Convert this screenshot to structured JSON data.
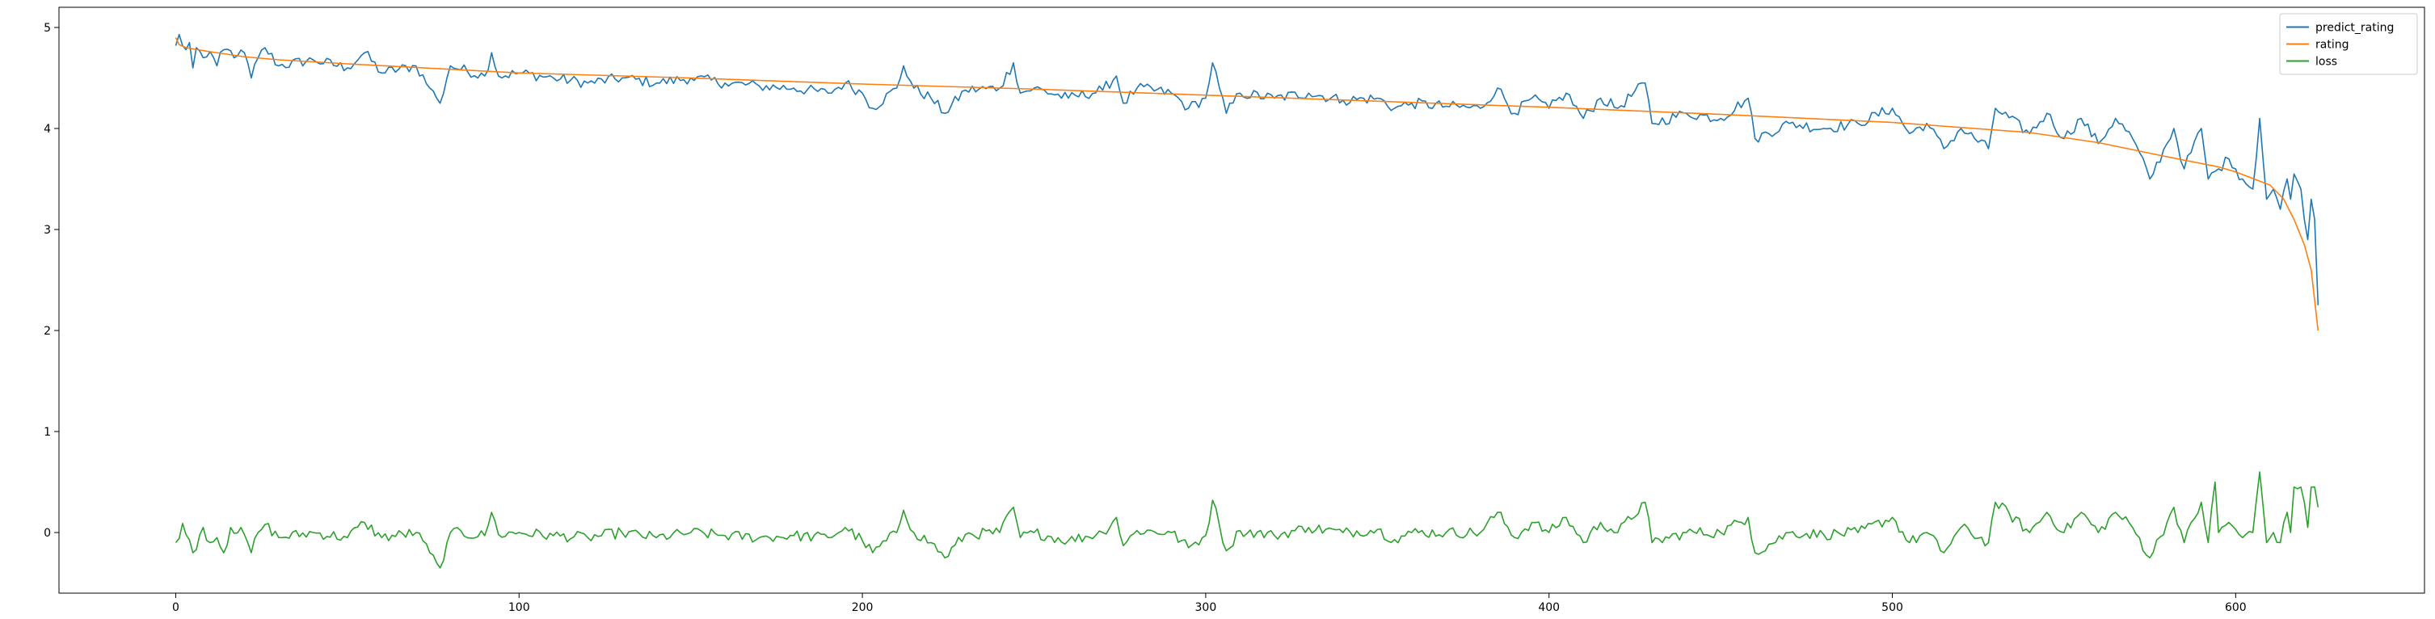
{
  "chart_data": {
    "type": "line",
    "title": "",
    "xlabel": "",
    "ylabel": "",
    "xlim": [
      -34,
      655
    ],
    "ylim": [
      -0.6,
      5.2
    ],
    "x_ticks": [
      0,
      100,
      200,
      300,
      400,
      500,
      600
    ],
    "y_ticks": [
      0,
      1,
      2,
      3,
      4,
      5
    ],
    "grid": false,
    "legend_position": "top-right",
    "n_points": 624,
    "series": [
      {
        "name": "predict_rating",
        "color": "#1f77b4",
        "anchors": [
          [
            0,
            4.82
          ],
          [
            1,
            4.93
          ],
          [
            2,
            4.82
          ],
          [
            3,
            4.78
          ],
          [
            4,
            4.85
          ],
          [
            5,
            4.6
          ],
          [
            6,
            4.8
          ],
          [
            8,
            4.7
          ],
          [
            10,
            4.76
          ],
          [
            12,
            4.62
          ],
          [
            14,
            4.78
          ],
          [
            18,
            4.72
          ],
          [
            20,
            4.75
          ],
          [
            22,
            4.5
          ],
          [
            24,
            4.7
          ],
          [
            26,
            4.8
          ],
          [
            30,
            4.62
          ],
          [
            40,
            4.68
          ],
          [
            50,
            4.6
          ],
          [
            55,
            4.75
          ],
          [
            60,
            4.55
          ],
          [
            70,
            4.62
          ],
          [
            74,
            4.4
          ],
          [
            76,
            4.3
          ],
          [
            77,
            4.25
          ],
          [
            79,
            4.5
          ],
          [
            80,
            4.62
          ],
          [
            90,
            4.52
          ],
          [
            92,
            4.75
          ],
          [
            94,
            4.52
          ],
          [
            100,
            4.55
          ],
          [
            110,
            4.5
          ],
          [
            120,
            4.45
          ],
          [
            130,
            4.5
          ],
          [
            140,
            4.45
          ],
          [
            150,
            4.5
          ],
          [
            160,
            4.45
          ],
          [
            170,
            4.42
          ],
          [
            180,
            4.4
          ],
          [
            190,
            4.35
          ],
          [
            195,
            4.45
          ],
          [
            200,
            4.35
          ],
          [
            203,
            4.2
          ],
          [
            210,
            4.4
          ],
          [
            212,
            4.62
          ],
          [
            215,
            4.4
          ],
          [
            220,
            4.3
          ],
          [
            224,
            4.15
          ],
          [
            230,
            4.38
          ],
          [
            240,
            4.4
          ],
          [
            244,
            4.65
          ],
          [
            246,
            4.35
          ],
          [
            250,
            4.4
          ],
          [
            260,
            4.3
          ],
          [
            270,
            4.38
          ],
          [
            274,
            4.52
          ],
          [
            276,
            4.25
          ],
          [
            280,
            4.4
          ],
          [
            290,
            4.35
          ],
          [
            295,
            4.2
          ],
          [
            300,
            4.3
          ],
          [
            302,
            4.65
          ],
          [
            304,
            4.4
          ],
          [
            306,
            4.15
          ],
          [
            310,
            4.35
          ],
          [
            320,
            4.3
          ],
          [
            330,
            4.35
          ],
          [
            340,
            4.28
          ],
          [
            350,
            4.3
          ],
          [
            355,
            4.2
          ],
          [
            360,
            4.25
          ],
          [
            370,
            4.22
          ],
          [
            380,
            4.2
          ],
          [
            385,
            4.4
          ],
          [
            390,
            4.15
          ],
          [
            395,
            4.3
          ],
          [
            400,
            4.2
          ],
          [
            405,
            4.35
          ],
          [
            410,
            4.1
          ],
          [
            415,
            4.3
          ],
          [
            420,
            4.2
          ],
          [
            428,
            4.45
          ],
          [
            430,
            4.05
          ],
          [
            440,
            4.15
          ],
          [
            450,
            4.1
          ],
          [
            458,
            4.3
          ],
          [
            460,
            3.9
          ],
          [
            470,
            4.05
          ],
          [
            480,
            4.0
          ],
          [
            490,
            4.05
          ],
          [
            500,
            4.2
          ],
          [
            505,
            3.95
          ],
          [
            510,
            4.05
          ],
          [
            515,
            3.8
          ],
          [
            520,
            4.0
          ],
          [
            528,
            3.8
          ],
          [
            530,
            4.2
          ],
          [
            540,
            3.95
          ],
          [
            545,
            4.15
          ],
          [
            550,
            3.9
          ],
          [
            555,
            4.1
          ],
          [
            560,
            3.85
          ],
          [
            565,
            4.1
          ],
          [
            570,
            3.9
          ],
          [
            575,
            3.5
          ],
          [
            580,
            3.85
          ],
          [
            582,
            4.0
          ],
          [
            585,
            3.6
          ],
          [
            590,
            4.0
          ],
          [
            592,
            3.5
          ],
          [
            595,
            3.6
          ],
          [
            598,
            3.7
          ],
          [
            600,
            3.6
          ],
          [
            602,
            3.5
          ],
          [
            605,
            3.4
          ],
          [
            607,
            4.1
          ],
          [
            609,
            3.3
          ],
          [
            611,
            3.4
          ],
          [
            613,
            3.2
          ],
          [
            615,
            3.5
          ],
          [
            616,
            3.3
          ],
          [
            617,
            3.55
          ],
          [
            619,
            3.4
          ],
          [
            620,
            3.1
          ],
          [
            621,
            2.9
          ],
          [
            622,
            3.3
          ],
          [
            623,
            3.1
          ],
          [
            624,
            2.25
          ]
        ],
        "noise": 0.055
      },
      {
        "name": "rating",
        "color": "#ff7f0e",
        "anchors": [
          [
            0,
            4.9
          ],
          [
            1,
            4.83
          ],
          [
            3,
            4.8
          ],
          [
            10,
            4.76
          ],
          [
            20,
            4.71
          ],
          [
            30,
            4.68
          ],
          [
            50,
            4.64
          ],
          [
            100,
            4.55
          ],
          [
            150,
            4.5
          ],
          [
            200,
            4.44
          ],
          [
            250,
            4.39
          ],
          [
            300,
            4.33
          ],
          [
            350,
            4.27
          ],
          [
            400,
            4.21
          ],
          [
            450,
            4.14
          ],
          [
            500,
            4.06
          ],
          [
            540,
            3.96
          ],
          [
            560,
            3.86
          ],
          [
            580,
            3.72
          ],
          [
            595,
            3.62
          ],
          [
            600,
            3.57
          ],
          [
            610,
            3.44
          ],
          [
            614,
            3.3
          ],
          [
            617,
            3.1
          ],
          [
            620,
            2.85
          ],
          [
            622,
            2.6
          ],
          [
            624,
            2.0
          ]
        ],
        "noise": 0
      },
      {
        "name": "loss",
        "color": "#2ca02c",
        "anchors": [
          [
            0,
            -0.1
          ],
          [
            2,
            0.09
          ],
          [
            3,
            -0.02
          ],
          [
            5,
            -0.2
          ],
          [
            8,
            0.05
          ],
          [
            10,
            -0.1
          ],
          [
            12,
            -0.05
          ],
          [
            14,
            -0.2
          ],
          [
            16,
            0.05
          ],
          [
            20,
            -0.02
          ],
          [
            22,
            -0.2
          ],
          [
            24,
            0.0
          ],
          [
            26,
            0.08
          ],
          [
            30,
            -0.05
          ],
          [
            40,
            0.0
          ],
          [
            50,
            -0.05
          ],
          [
            55,
            0.1
          ],
          [
            60,
            -0.05
          ],
          [
            70,
            0.0
          ],
          [
            74,
            -0.2
          ],
          [
            76,
            -0.3
          ],
          [
            77,
            -0.35
          ],
          [
            79,
            -0.1
          ],
          [
            80,
            0.0
          ],
          [
            90,
            -0.03
          ],
          [
            92,
            0.2
          ],
          [
            94,
            -0.02
          ],
          [
            100,
            0.0
          ],
          [
            110,
            -0.03
          ],
          [
            120,
            -0.05
          ],
          [
            130,
            0.0
          ],
          [
            140,
            -0.05
          ],
          [
            150,
            0.0
          ],
          [
            160,
            -0.03
          ],
          [
            170,
            -0.05
          ],
          [
            180,
            -0.03
          ],
          [
            190,
            -0.05
          ],
          [
            195,
            0.05
          ],
          [
            200,
            -0.08
          ],
          [
            203,
            -0.2
          ],
          [
            210,
            0.0
          ],
          [
            212,
            0.22
          ],
          [
            215,
            0.0
          ],
          [
            220,
            -0.1
          ],
          [
            224,
            -0.25
          ],
          [
            230,
            -0.02
          ],
          [
            240,
            0.0
          ],
          [
            244,
            0.25
          ],
          [
            246,
            -0.05
          ],
          [
            250,
            0.0
          ],
          [
            260,
            -0.08
          ],
          [
            270,
            0.0
          ],
          [
            274,
            0.15
          ],
          [
            276,
            -0.13
          ],
          [
            280,
            0.02
          ],
          [
            290,
            0.0
          ],
          [
            295,
            -0.15
          ],
          [
            300,
            -0.03
          ],
          [
            302,
            0.32
          ],
          [
            304,
            0.07
          ],
          [
            306,
            -0.18
          ],
          [
            310,
            0.02
          ],
          [
            320,
            -0.03
          ],
          [
            330,
            0.05
          ],
          [
            340,
            0.0
          ],
          [
            350,
            0.03
          ],
          [
            355,
            -0.07
          ],
          [
            360,
            0.0
          ],
          [
            370,
            0.0
          ],
          [
            380,
            0.0
          ],
          [
            385,
            0.2
          ],
          [
            390,
            -0.05
          ],
          [
            395,
            0.1
          ],
          [
            400,
            0.0
          ],
          [
            405,
            0.15
          ],
          [
            410,
            -0.1
          ],
          [
            415,
            0.1
          ],
          [
            420,
            0.0
          ],
          [
            428,
            0.3
          ],
          [
            430,
            -0.1
          ],
          [
            440,
            0.0
          ],
          [
            450,
            0.0
          ],
          [
            458,
            0.15
          ],
          [
            460,
            -0.2
          ],
          [
            470,
            0.0
          ],
          [
            480,
            -0.02
          ],
          [
            490,
            0.0
          ],
          [
            500,
            0.15
          ],
          [
            505,
            -0.1
          ],
          [
            510,
            0.0
          ],
          [
            515,
            -0.2
          ],
          [
            520,
            0.05
          ],
          [
            528,
            -0.1
          ],
          [
            530,
            0.3
          ],
          [
            540,
            0.0
          ],
          [
            545,
            0.2
          ],
          [
            550,
            0.0
          ],
          [
            555,
            0.2
          ],
          [
            560,
            0.0
          ],
          [
            565,
            0.2
          ],
          [
            570,
            0.05
          ],
          [
            575,
            -0.25
          ],
          [
            580,
            0.1
          ],
          [
            582,
            0.25
          ],
          [
            585,
            -0.1
          ],
          [
            590,
            0.3
          ],
          [
            592,
            -0.1
          ],
          [
            594,
            0.5
          ],
          [
            595,
            0.0
          ],
          [
            598,
            0.1
          ],
          [
            600,
            0.03
          ],
          [
            602,
            -0.05
          ],
          [
            605,
            0.0
          ],
          [
            607,
            0.6
          ],
          [
            609,
            -0.1
          ],
          [
            611,
            0.0
          ],
          [
            613,
            -0.1
          ],
          [
            615,
            0.2
          ],
          [
            616,
            0.0
          ],
          [
            617,
            0.45
          ],
          [
            619,
            0.45
          ],
          [
            620,
            0.3
          ],
          [
            621,
            0.05
          ],
          [
            622,
            0.45
          ],
          [
            623,
            0.45
          ],
          [
            624,
            0.25
          ]
        ],
        "noise": 0.055
      }
    ]
  }
}
